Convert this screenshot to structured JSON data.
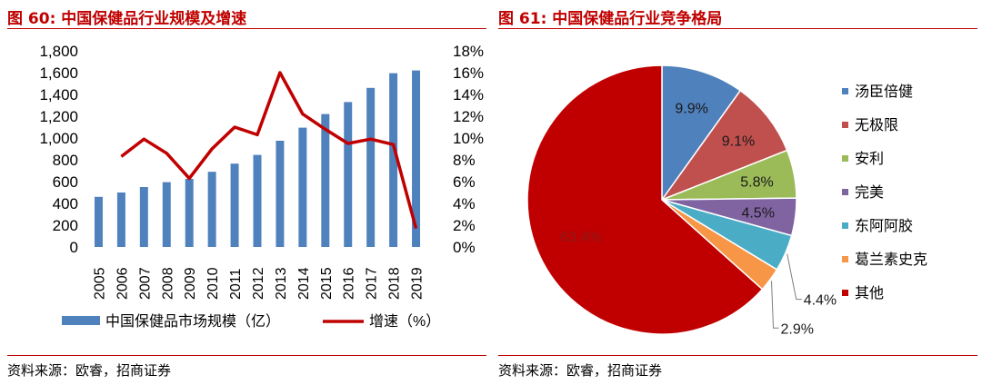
{
  "left": {
    "title": "图 60:  中国保健品行业规模及增速",
    "source": "资料来源：欧睿，招商证券"
  },
  "right": {
    "title": "图 61:  中国保健品行业竞争格局",
    "source": "资料来源：欧睿，招商证券"
  },
  "chart_data": [
    {
      "type": "bar+line",
      "categories": [
        "2005",
        "2006",
        "2007",
        "2008",
        "2009",
        "2010",
        "2011",
        "2012",
        "2013",
        "2014",
        "2015",
        "2016",
        "2017",
        "2018",
        "2019"
      ],
      "series": [
        {
          "name": "中国保健品市场规模（亿）",
          "type": "bar",
          "axis": "left",
          "color": "#4f81bd",
          "values": [
            460,
            500,
            550,
            595,
            625,
            690,
            765,
            845,
            975,
            1095,
            1220,
            1330,
            1460,
            1595,
            1620
          ]
        },
        {
          "name": "增速（%）",
          "type": "line",
          "axis": "right",
          "color": "#c00000",
          "values": [
            null,
            8.3,
            9.9,
            8.6,
            6.3,
            9.0,
            11.0,
            10.3,
            16.0,
            12.2,
            10.8,
            9.5,
            9.9,
            9.4,
            1.7
          ]
        }
      ],
      "ylim_left": [
        0,
        1800
      ],
      "yticks_left": [
        "0",
        "200",
        "400",
        "600",
        "800",
        "1,000",
        "1,200",
        "1,400",
        "1,600",
        "1,800"
      ],
      "ylim_right": [
        0,
        18
      ],
      "yticks_right": [
        "0%",
        "2%",
        "4%",
        "6%",
        "8%",
        "10%",
        "12%",
        "14%",
        "16%",
        "18%"
      ],
      "grid": false,
      "legend_position": "bottom"
    },
    {
      "type": "pie",
      "slices": [
        {
          "label": "汤臣倍健",
          "value": 9.9,
          "text": "9.9%",
          "color": "#4f81bd"
        },
        {
          "label": "无极限",
          "value": 9.1,
          "text": "9.1%",
          "color": "#c0504d"
        },
        {
          "label": "安利",
          "value": 5.8,
          "text": "5.8%",
          "color": "#9bbb59"
        },
        {
          "label": "完美",
          "value": 4.5,
          "text": "4.5%",
          "color": "#8064a2"
        },
        {
          "label": "东阿阿胶",
          "value": 4.4,
          "text": "4.4%",
          "color": "#4bacc6"
        },
        {
          "label": "葛兰素史克",
          "value": 2.9,
          "text": "2.9%",
          "color": "#f79646"
        },
        {
          "label": "其他",
          "value": 63.4,
          "text": "63.4%",
          "color": "#c00000"
        }
      ],
      "legend_position": "right"
    }
  ]
}
